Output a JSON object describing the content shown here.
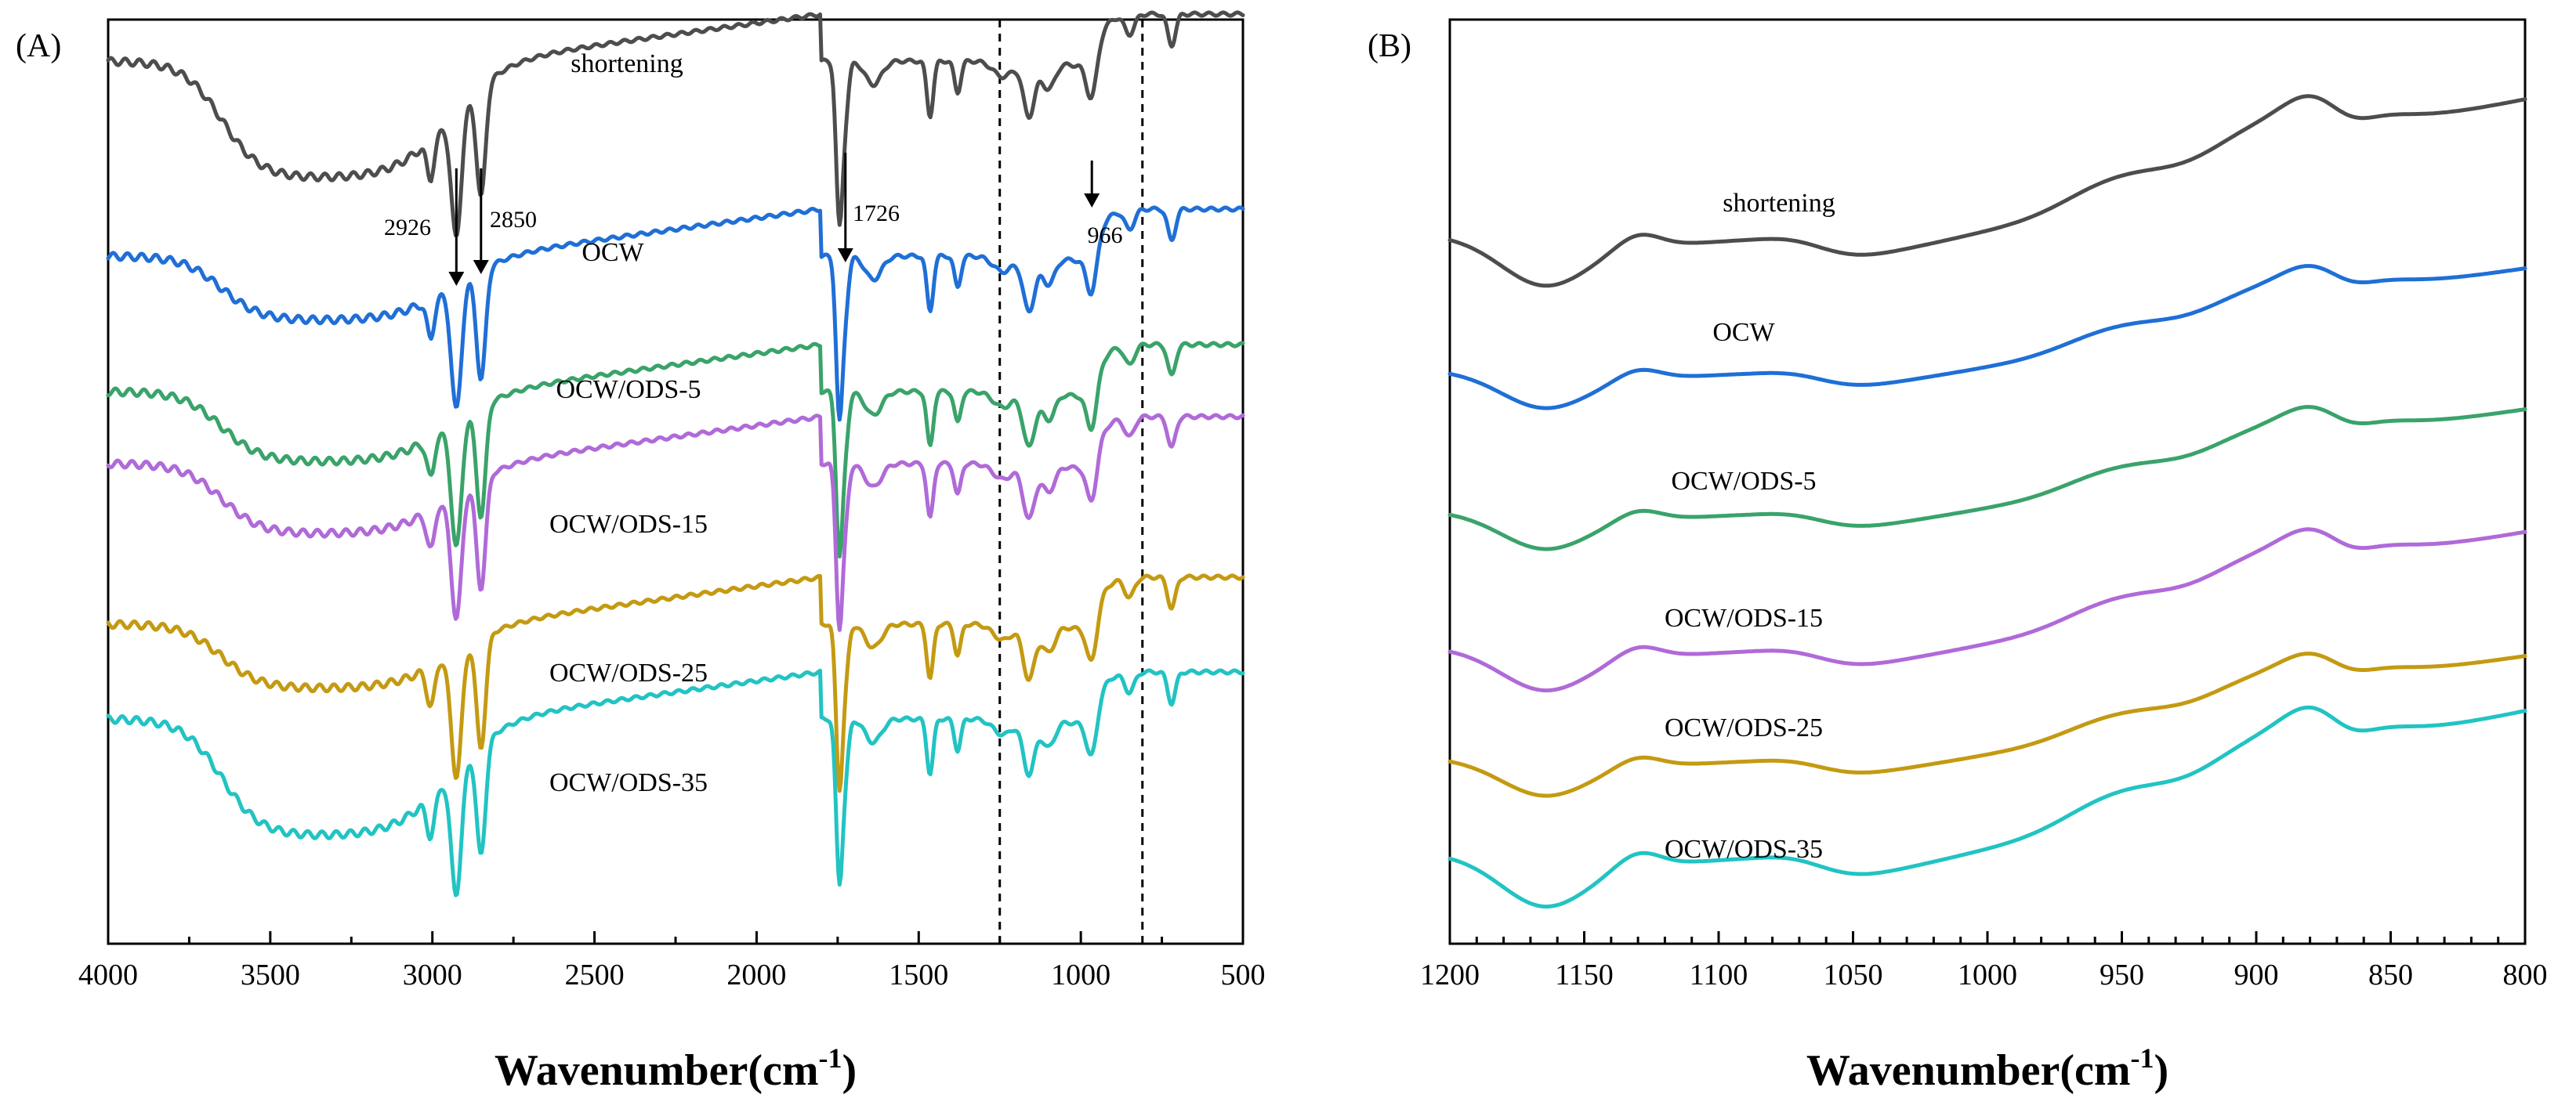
{
  "colors": {
    "shortening": "#4d4d4d",
    "OCW": "#1f6fd6",
    "OCW/ODS-5": "#3aa36a",
    "OCW/ODS-15": "#b06ad8",
    "OCW/ODS-25": "#c49a12",
    "OCW/ODS-35": "#22c3c3"
  },
  "chart_data": [
    {
      "type": "line",
      "panel_label": "(A)",
      "xlabel": "Wavenumber(cm",
      "xlabel_sup": "-1",
      "xlabel_close": ")",
      "xlim": [
        4000,
        500
      ],
      "x_ticks": [
        4000,
        3500,
        3000,
        2500,
        2000,
        1500,
        1000,
        500
      ],
      "x_tick_labels": [
        "4000",
        "3500",
        "3000",
        "2500",
        "2000",
        "1500",
        "1000",
        "500"
      ],
      "y_ticks_shown": false,
      "reference_lines": [
        1250,
        810
      ],
      "annotations": [
        {
          "label": "2926",
          "x": 2926
        },
        {
          "label": "2850",
          "x": 2850
        },
        {
          "label": "1726",
          "x": 1726
        },
        {
          "label": "966",
          "x": 966
        }
      ],
      "series": [
        {
          "name": "shortening",
          "offset": 5
        },
        {
          "name": "OCW",
          "offset": 4
        },
        {
          "name": "OCW/ODS-5",
          "offset": 3
        },
        {
          "name": "OCW/ODS-15",
          "offset": 2
        },
        {
          "name": "OCW/ODS-25",
          "offset": 1
        },
        {
          "name": "OCW/ODS-35",
          "offset": 0
        }
      ]
    },
    {
      "type": "line",
      "panel_label": "(B)",
      "xlabel": "Wavenumber(cm",
      "xlabel_sup": "-1",
      "xlabel_close": ")",
      "xlim": [
        1200,
        800
      ],
      "x_ticks": [
        1200,
        1150,
        1100,
        1050,
        1000,
        950,
        900,
        850,
        800
      ],
      "x_tick_labels": [
        "1200",
        "1150",
        "1100",
        "1050",
        "1000",
        "950",
        "900",
        "850",
        "800"
      ],
      "y_ticks_shown": false,
      "series": [
        {
          "name": "shortening",
          "offset": 5
        },
        {
          "name": "OCW",
          "offset": 4
        },
        {
          "name": "OCW/ODS-5",
          "offset": 3
        },
        {
          "name": "OCW/ODS-15",
          "offset": 2
        },
        {
          "name": "OCW/ODS-25",
          "offset": 1
        },
        {
          "name": "OCW/ODS-35",
          "offset": 0
        }
      ]
    }
  ]
}
